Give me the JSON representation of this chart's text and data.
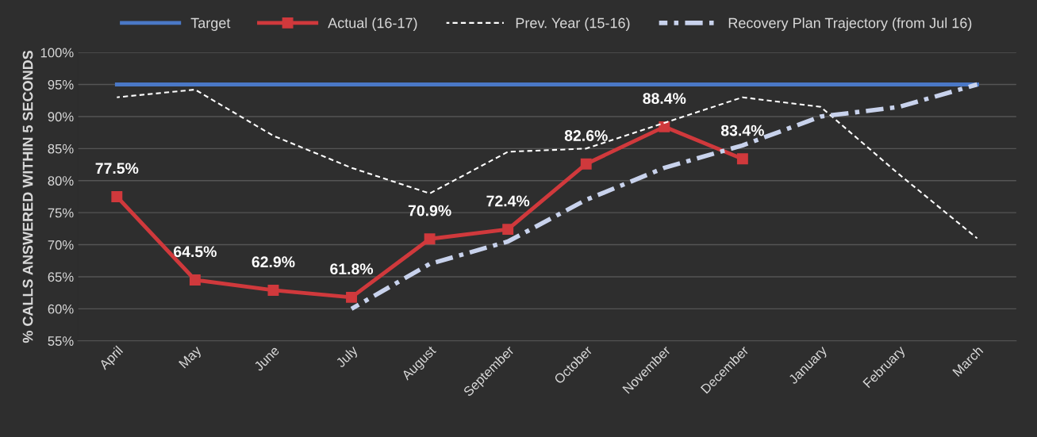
{
  "chart_data": {
    "type": "line",
    "ylabel": "% CALLS ANSWERED WITHIN 5 SECONDS",
    "categories": [
      "April",
      "May",
      "June",
      "July",
      "August",
      "September",
      "October",
      "November",
      "December",
      "January",
      "February",
      "March"
    ],
    "series": [
      {
        "name": "Target",
        "color": "#4a78c6",
        "line_style": "solid",
        "marker": "none",
        "values": [
          95,
          95,
          95,
          95,
          95,
          95,
          95,
          95,
          95,
          95,
          95,
          95
        ]
      },
      {
        "name": "Actual (16-17)",
        "color": "#d0393c",
        "line_style": "solid",
        "marker": "square",
        "values": [
          77.5,
          64.5,
          62.9,
          61.8,
          70.9,
          72.4,
          82.6,
          88.4,
          83.4,
          null,
          null,
          null
        ],
        "value_labels": [
          "77.5%",
          "64.5%",
          "62.9%",
          "61.8%",
          "70.9%",
          "72.4%",
          "82.6%",
          "88.4%",
          "83.4%",
          null,
          null,
          null
        ]
      },
      {
        "name": "Prev. Year (15-16)",
        "color": "#ffffff",
        "line_style": "dashed",
        "marker": "none",
        "values": [
          93,
          94.2,
          87,
          82,
          78,
          84.5,
          85,
          89,
          93,
          91.5,
          81,
          71
        ]
      },
      {
        "name": "Recovery Plan Trajectory (from Jul 16)",
        "color": "#c8d2ec",
        "line_style": "dashdot",
        "marker": "none",
        "values": [
          null,
          null,
          null,
          60,
          67,
          70.5,
          77,
          82,
          85.5,
          90,
          91.5,
          95
        ]
      }
    ],
    "ylim": [
      55,
      100
    ],
    "yticks": [
      {
        "value": 55,
        "label": "55%"
      },
      {
        "value": 60,
        "label": "60%"
      },
      {
        "value": 65,
        "label": "65%"
      },
      {
        "value": 70,
        "label": "70%"
      },
      {
        "value": 75,
        "label": "75%"
      },
      {
        "value": 80,
        "label": "80%"
      },
      {
        "value": 85,
        "label": "85%"
      },
      {
        "value": 90,
        "label": "90%"
      },
      {
        "value": 95,
        "label": "95%"
      },
      {
        "value": 100,
        "label": "100%"
      }
    ],
    "grid": "y",
    "legend": "top"
  }
}
